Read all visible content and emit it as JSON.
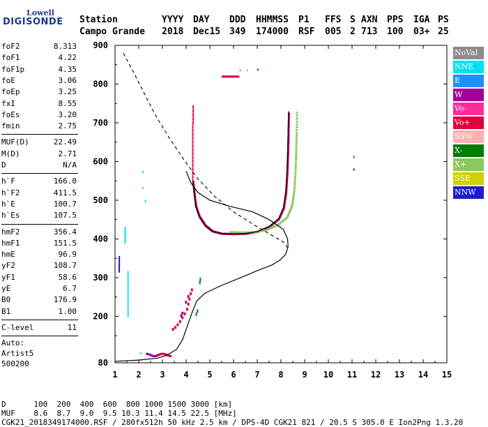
{
  "logo": {
    "line1": "Lowell",
    "line2": "DIGISONDE"
  },
  "header": {
    "row1": [
      "Station",
      "YYYY",
      "DAY",
      "DDD",
      "HHMMSS",
      "P1",
      "FFS",
      "S",
      "AXN",
      "PPS",
      "IGA",
      "PS"
    ],
    "row2": [
      "Campo Grande",
      "2018",
      "Dec15",
      "349",
      "174000",
      "RSF",
      "005",
      "2",
      "713",
      "100",
      "03+",
      "25"
    ]
  },
  "params": [
    {
      "k": "foF2",
      "v": "8.313"
    },
    {
      "k": "foF1",
      "v": "4.22"
    },
    {
      "k": "foF1p",
      "v": "4.35"
    },
    {
      "k": "foE",
      "v": "3.06"
    },
    {
      "k": "foEp",
      "v": "3.25"
    },
    {
      "k": "fxI",
      "v": "8.55"
    },
    {
      "k": "foEs",
      "v": "3.20"
    },
    {
      "k": "fmin",
      "v": "2.75"
    },
    {
      "k": "MUF(D)",
      "v": "22.49"
    },
    {
      "k": "M(D)",
      "v": "2.71"
    },
    {
      "k": "D",
      "v": "N/A"
    },
    {
      "k": "h`F",
      "v": "166.0"
    },
    {
      "k": "h`F2",
      "v": "411.5"
    },
    {
      "k": "h`E",
      "v": "100.7"
    },
    {
      "k": "h`Es",
      "v": "107.5"
    },
    {
      "k": "hmF2",
      "v": "356.4"
    },
    {
      "k": "hmF1",
      "v": "151.5"
    },
    {
      "k": "hmE",
      "v": "96.9"
    },
    {
      "k": "yF2",
      "v": "108.7"
    },
    {
      "k": "yF1",
      "v": "58.6"
    },
    {
      "k": "yE",
      "v": "6.7"
    },
    {
      "k": "B0",
      "v": "176.9"
    },
    {
      "k": "B1",
      "v": "1.00"
    },
    {
      "k": "C-level",
      "v": "11"
    }
  ],
  "auto": [
    "Auto:",
    "Artist5",
    "500200"
  ],
  "legend": [
    {
      "label": "NoVal",
      "color": "#8c8c8c"
    },
    {
      "label": "NNE",
      "color": "#00e0f0"
    },
    {
      "label": "E",
      "color": "#1e90ff"
    },
    {
      "label": "W",
      "color": "#a0009a"
    },
    {
      "label": "Vo-",
      "color": "#ff2c9a"
    },
    {
      "label": "Vo+",
      "color": "#e0003c"
    },
    {
      "label": "SSW",
      "color": "#ffb0b0"
    },
    {
      "label": "X-",
      "color": "#007a00"
    },
    {
      "label": "X+",
      "color": "#8cc860"
    },
    {
      "label": "SSE",
      "color": "#d0d000"
    },
    {
      "label": "NNW",
      "color": "#1c1ccc"
    }
  ],
  "footer": {
    "row1": "D      100  200  400  600  800 1000 1500 3000 [km]",
    "row2": "MUF    8.6  8.7  9.0  9.5 10.3 11.4 14.5 22.5 [MHz]",
    "row3": "CGK21_2018349174000.RSF / 280fx512h 50 kHz 2.5 km / DPS-4D CGK21 821 / 20.5 S 305.0 E Ion2Png 1.3.20"
  },
  "chart_data": {
    "type": "scatter",
    "xlim": [
      1,
      15
    ],
    "ylim": [
      80,
      900
    ],
    "xticks": [
      1,
      2,
      3,
      4,
      5,
      6,
      7,
      8,
      9,
      10,
      11,
      12,
      13,
      14,
      15
    ],
    "yticks": [
      80,
      200,
      300,
      400,
      500,
      600,
      700,
      800,
      900
    ],
    "profile_solid": [
      [
        1.0,
        84
      ],
      [
        2.0,
        87
      ],
      [
        2.8,
        92
      ],
      [
        3.2,
        100
      ],
      [
        3.6,
        115
      ],
      [
        3.85,
        140
      ],
      [
        4.05,
        175
      ],
      [
        4.25,
        210
      ],
      [
        4.45,
        240
      ],
      [
        4.8,
        260
      ],
      [
        5.5,
        280
      ],
      [
        6.3,
        300
      ],
      [
        7.0,
        318
      ],
      [
        7.6,
        332
      ],
      [
        7.95,
        345
      ],
      [
        8.2,
        360
      ],
      [
        8.3,
        380
      ],
      [
        8.28,
        400
      ],
      [
        8.1,
        425
      ],
      [
        7.5,
        450
      ],
      [
        6.8,
        470
      ],
      [
        5.8,
        485
      ],
      [
        5.0,
        500
      ],
      [
        4.5,
        520
      ],
      [
        4.2,
        545
      ],
      [
        4.0,
        575
      ]
    ],
    "virtual_height_solid": [
      [
        4.28,
        548
      ],
      [
        4.33,
        520
      ],
      [
        4.4,
        485
      ],
      [
        4.55,
        458
      ],
      [
        4.8,
        435
      ],
      [
        5.1,
        420
      ],
      [
        5.5,
        414
      ],
      [
        6.0,
        413
      ],
      [
        6.5,
        414
      ],
      [
        7.0,
        419
      ],
      [
        7.5,
        432
      ],
      [
        7.9,
        452
      ],
      [
        8.1,
        480
      ],
      [
        8.2,
        520
      ],
      [
        8.25,
        570
      ],
      [
        8.28,
        620
      ],
      [
        8.3,
        670
      ],
      [
        8.32,
        730
      ]
    ],
    "dashed_curve": [
      [
        1.35,
        880
      ],
      [
        1.7,
        840
      ],
      [
        2.2,
        780
      ],
      [
        2.7,
        720
      ],
      [
        3.3,
        660
      ],
      [
        3.9,
        605
      ],
      [
        4.5,
        555
      ],
      [
        5.2,
        510
      ],
      [
        6.0,
        470
      ],
      [
        6.9,
        435
      ],
      [
        7.6,
        410
      ],
      [
        8.1,
        392
      ],
      [
        8.35,
        372
      ]
    ]
  }
}
